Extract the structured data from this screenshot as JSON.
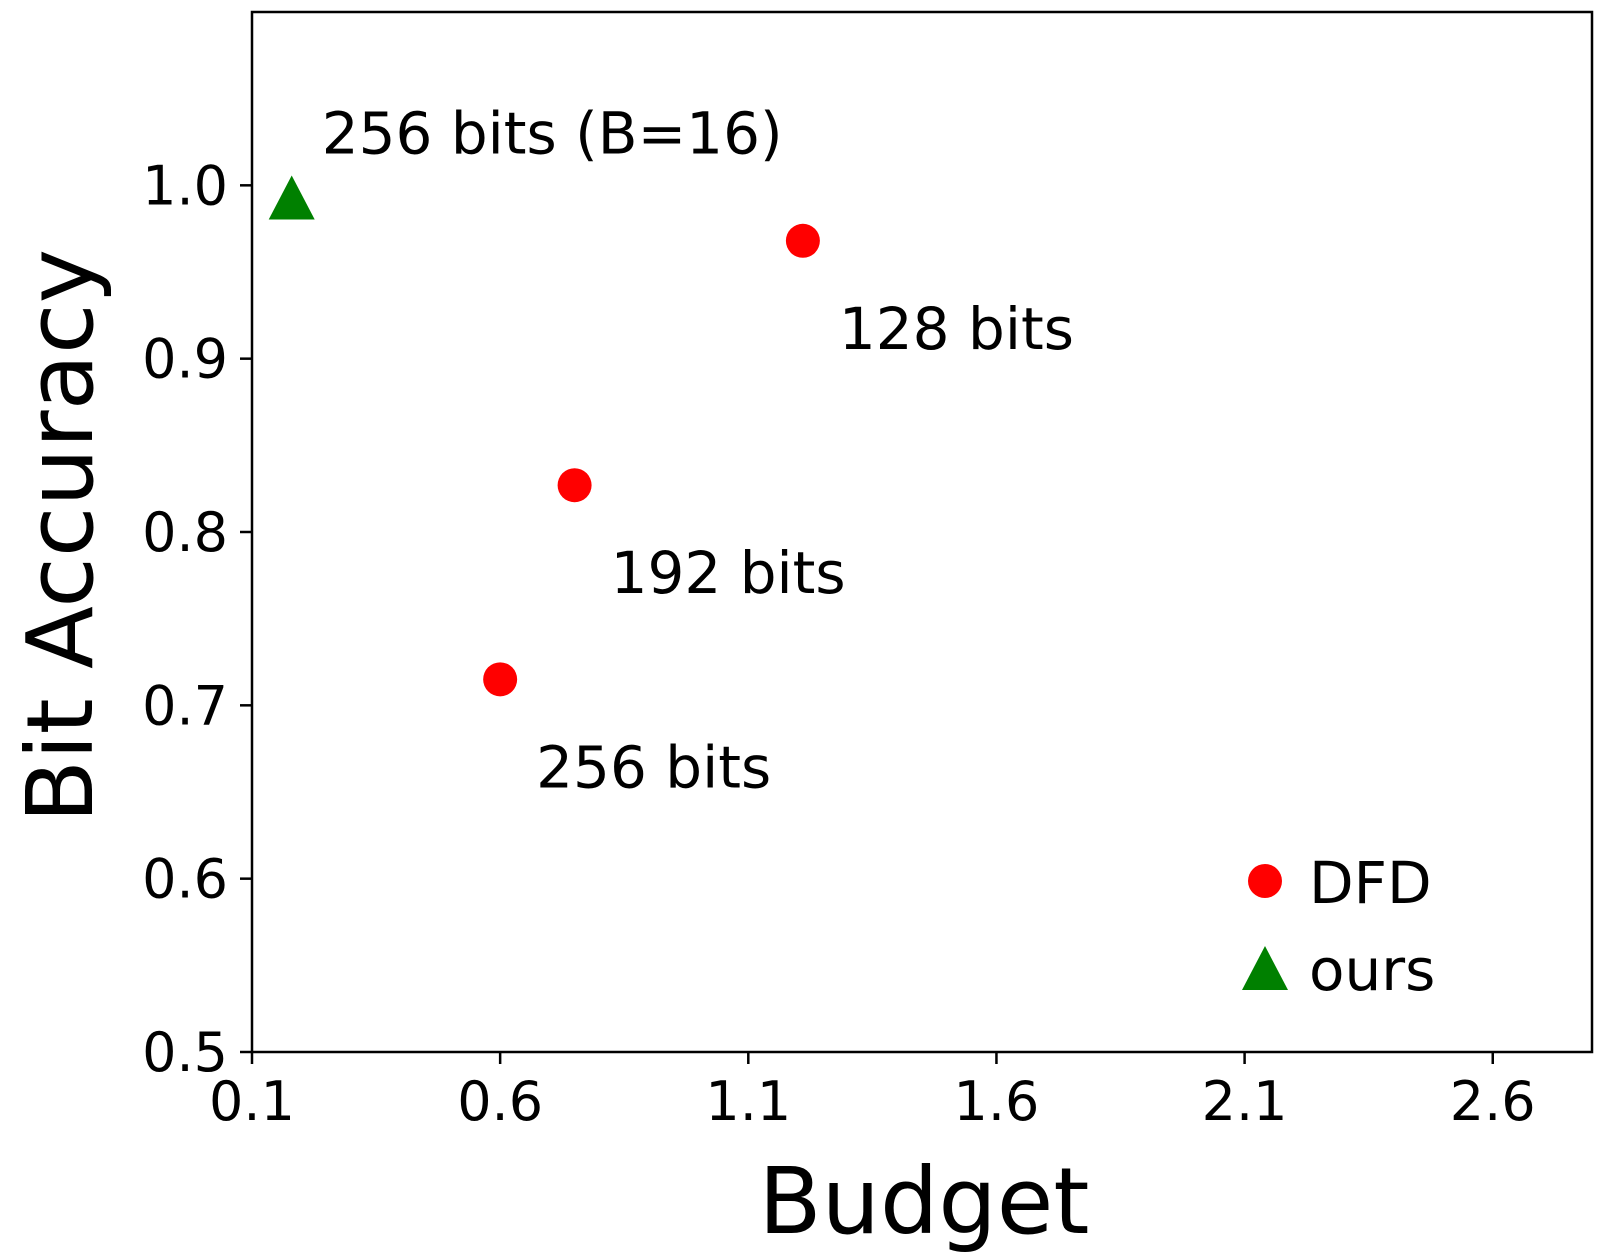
{
  "chart_data": {
    "type": "scatter",
    "xlabel": "Budget",
    "ylabel": "Bit Accuracy",
    "xlim": [
      0.1,
      2.8
    ],
    "ylim": [
      0.5,
      1.1
    ],
    "xticks": [
      "0.1",
      "0.6",
      "1.1",
      "1.6",
      "2.1",
      "2.6"
    ],
    "yticks": [
      "0.5",
      "0.6",
      "0.7",
      "0.8",
      "0.9",
      "1.0"
    ],
    "grid": false,
    "legend": {
      "placement": "lower-right",
      "entries": [
        {
          "name": "DFD",
          "marker": "circle",
          "color": "#ff0000"
        },
        {
          "name": "ours",
          "marker": "triangle",
          "color": "#008000"
        }
      ]
    },
    "series": [
      {
        "name": "DFD",
        "marker": "circle",
        "color": "#ff0000",
        "points": [
          {
            "x": 1.21,
            "y": 0.968,
            "label": "128 bits"
          },
          {
            "x": 0.75,
            "y": 0.827,
            "label": "192 bits"
          },
          {
            "x": 0.6,
            "y": 0.715,
            "label": "256 bits"
          }
        ]
      },
      {
        "name": "ours",
        "marker": "triangle",
        "color": "#008000",
        "points": [
          {
            "x": 0.18,
            "y": 0.993,
            "label": "256 bits (B=16)"
          }
        ]
      }
    ]
  }
}
